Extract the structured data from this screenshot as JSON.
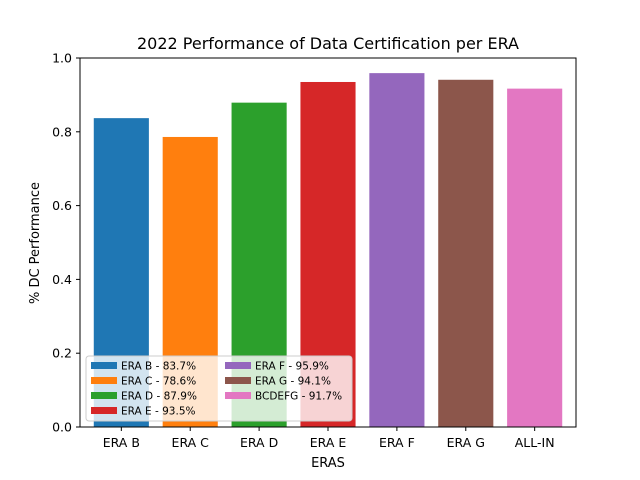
{
  "chart_data": {
    "type": "bar",
    "title": "2022 Performance of Data Certification per ERA",
    "xlabel": "ERAS",
    "ylabel": "% DC Performance",
    "categories": [
      "ERA B",
      "ERA C",
      "ERA D",
      "ERA E",
      "ERA F",
      "ERA G",
      "ALL-IN"
    ],
    "values": [
      0.837,
      0.786,
      0.879,
      0.935,
      0.959,
      0.941,
      0.917
    ],
    "colors": [
      "#1f77b4",
      "#ff7f0e",
      "#2ca02c",
      "#d62728",
      "#9467bd",
      "#8c564b",
      "#e377c2"
    ],
    "ylim": [
      0,
      1.0
    ],
    "yticks": [
      "0.0",
      "0.2",
      "0.4",
      "0.6",
      "0.8",
      "1.0"
    ],
    "grid": false,
    "legend": {
      "placement": "lower-left",
      "columns": 2,
      "entries": [
        "ERA B - 83.7%",
        "ERA C - 78.6%",
        "ERA D - 87.9%",
        "ERA E - 93.5%",
        "ERA F - 95.9%",
        "ERA G - 94.1%",
        "BCDEFG - 91.7%"
      ]
    }
  }
}
